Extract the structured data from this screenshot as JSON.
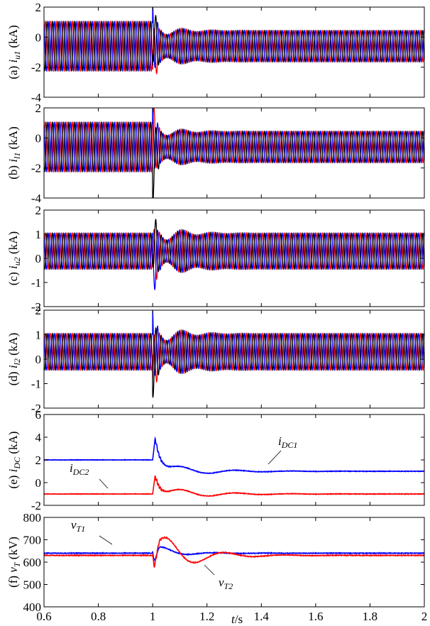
{
  "chart_data": [
    {
      "type": "line",
      "panel": "a",
      "ylabel": {
        "prefix": "(a) ",
        "sym": "i",
        "sub": "u1",
        "unit": " (kA)"
      },
      "ylim": [
        -4,
        2
      ],
      "yticks": [
        -4,
        -2,
        0,
        2
      ],
      "xlim": [
        0.6,
        2
      ],
      "series": [
        {
          "color": "#ff0000",
          "phase": 0,
          "offset": -0.6,
          "amp_pre": 1.65,
          "amp_post": 1.05,
          "transient_peak": -3.2
        },
        {
          "color": "#0000ff",
          "phase": 2.094,
          "offset": -0.6,
          "amp_pre": 1.65,
          "amp_post": 1.05,
          "transient_peak": 1.4
        },
        {
          "color": "#000000",
          "phase": 4.189,
          "offset": -0.6,
          "amp_pre": 1.65,
          "amp_post": 1.05,
          "transient_peak": 1.7
        }
      ]
    },
    {
      "type": "line",
      "panel": "b",
      "ylabel": {
        "prefix": "(b) ",
        "sym": "i",
        "sub": "l1",
        "unit": " (kA)"
      },
      "ylim": [
        -4,
        2
      ],
      "yticks": [
        -4,
        -2,
        0,
        2
      ],
      "xlim": [
        0.6,
        2
      ],
      "series": [
        {
          "color": "#ff0000",
          "phase": 0,
          "offset": -0.6,
          "amp_pre": 1.65,
          "amp_post": 1.05,
          "transient_peak": 1.4
        },
        {
          "color": "#0000ff",
          "phase": 2.094,
          "offset": -0.6,
          "amp_pre": 1.65,
          "amp_post": 1.05,
          "transient_peak": 1.5
        },
        {
          "color": "#000000",
          "phase": 4.189,
          "offset": -0.6,
          "amp_pre": 1.65,
          "amp_post": 1.05,
          "transient_peak": -3.6
        }
      ]
    },
    {
      "type": "line",
      "panel": "c",
      "ylabel": {
        "prefix": "(c) ",
        "sym": "i",
        "sub": "u2",
        "unit": " (kA)"
      },
      "ylim": [
        -2,
        2
      ],
      "yticks": [
        -2,
        -1,
        0,
        1,
        2
      ],
      "xlim": [
        0.6,
        2
      ],
      "series": [
        {
          "color": "#ff0000",
          "phase": 0,
          "offset": 0.3,
          "amp_pre": 0.75,
          "amp_post": 0.75,
          "transient_peak": -0.8
        },
        {
          "color": "#0000ff",
          "phase": 2.094,
          "offset": 0.3,
          "amp_pre": 0.75,
          "amp_post": 0.75,
          "transient_peak": -1.5
        },
        {
          "color": "#000000",
          "phase": 4.189,
          "offset": 0.3,
          "amp_pre": 0.75,
          "amp_post": 0.75,
          "transient_peak": 1.6
        }
      ]
    },
    {
      "type": "line",
      "panel": "d",
      "ylabel": {
        "prefix": "(d) ",
        "sym": "i",
        "sub": "l2",
        "unit": " (kA)"
      },
      "ylim": [
        -2,
        2
      ],
      "yticks": [
        -2,
        -1,
        0,
        1,
        2
      ],
      "xlim": [
        0.6,
        2
      ],
      "series": [
        {
          "color": "#ff0000",
          "phase": 0,
          "offset": 0.3,
          "amp_pre": 0.75,
          "amp_post": 0.75,
          "transient_peak": -1.5
        },
        {
          "color": "#0000ff",
          "phase": 2.094,
          "offset": 0.3,
          "amp_pre": 0.75,
          "amp_post": 0.75,
          "transient_peak": 1.4
        },
        {
          "color": "#000000",
          "phase": 4.189,
          "offset": 0.3,
          "amp_pre": 0.75,
          "amp_post": 0.75,
          "transient_peak": -0.8
        }
      ]
    },
    {
      "type": "line",
      "panel": "e",
      "ylabel": {
        "prefix": "(e) ",
        "sym": "i",
        "sub": "DC",
        "unit": " (kA)"
      },
      "ylim": [
        -2,
        6
      ],
      "yticks": [
        -2,
        0,
        2,
        4,
        6
      ],
      "xlim": [
        0.6,
        2
      ],
      "series": [
        {
          "name_sym": "i",
          "name_sub": "DC1",
          "color": "#0000ff",
          "pre": 2.0,
          "peak": 4.1,
          "post": 1.0,
          "osc": 0.7
        },
        {
          "name_sym": "i",
          "name_sub": "DC2",
          "color": "#ff0000",
          "pre": -1.0,
          "peak": 0.8,
          "post": -1.0,
          "osc": 0.7
        }
      ]
    },
    {
      "type": "line",
      "panel": "f",
      "ylabel": {
        "prefix": "(f) ",
        "sym": "v",
        "sub": "T",
        "unit": " (kV)"
      },
      "ylim": [
        400,
        800
      ],
      "yticks": [
        400,
        500,
        600,
        700,
        800
      ],
      "xlim": [
        0.6,
        2
      ],
      "xticks": [
        0.6,
        0.8,
        1,
        1.2,
        1.4,
        1.6,
        1.8,
        2
      ],
      "xlabel": {
        "sym": "t",
        "unit": "/s"
      },
      "series": [
        {
          "name_sym": "v",
          "name_sub": "T1",
          "color": "#0000ff",
          "pre": 640,
          "post": 640
        },
        {
          "name_sym": "v",
          "name_sub": "T2",
          "color": "#ff0000",
          "pre": 630,
          "post": 630
        }
      ]
    }
  ]
}
